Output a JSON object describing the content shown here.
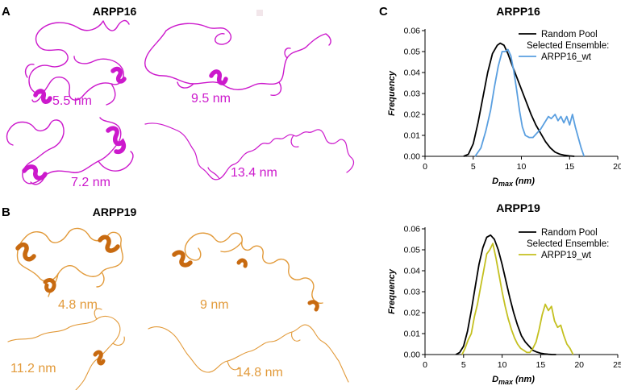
{
  "panels": {
    "a": {
      "letter": "A",
      "title": "ARPP16",
      "color": "#cc19cc",
      "sizes": [
        "5.5 nm",
        "9.5 nm",
        "7.2 nm",
        "13.4 nm"
      ]
    },
    "b": {
      "letter": "B",
      "title": "ARPP19",
      "color": "#e29a3a",
      "helix_color": "#c86a10",
      "sizes": [
        "4.8 nm",
        "9 nm",
        "11.2 nm",
        "14.8 nm"
      ]
    },
    "c": {
      "letter": "C"
    }
  },
  "chart_data": [
    {
      "type": "line",
      "title": "ARPP16",
      "xlabel": "D_max (nm)",
      "xlabel_main": "D",
      "xlabel_sub": "max",
      "xlabel_unit": " (nm)",
      "ylabel": "Frequency",
      "xlim": [
        0,
        20
      ],
      "ylim": [
        0,
        0.06
      ],
      "xticks": [
        0,
        5,
        10,
        15,
        20
      ],
      "yticks": [
        0.0,
        0.01,
        0.02,
        0.03,
        0.04,
        0.05,
        0.06
      ],
      "ytick_labels": [
        "0.00",
        "0.01",
        "0.02",
        "0.03",
        "0.04",
        "0.05",
        "0.06"
      ],
      "legend": {
        "position": "top-right",
        "header": "Selected Ensemble:"
      },
      "series": [
        {
          "name": "Random Pool",
          "color": "#000000",
          "x": [
            4,
            4.5,
            5,
            5.5,
            6,
            6.5,
            7,
            7.5,
            7.8,
            8.2,
            8.6,
            9,
            9.5,
            10,
            10.5,
            11,
            11.5,
            12,
            12.5,
            13,
            13.5,
            14,
            14.5,
            15,
            15.5
          ],
          "y": [
            0,
            0.001,
            0.006,
            0.016,
            0.028,
            0.04,
            0.049,
            0.053,
            0.054,
            0.053,
            0.049,
            0.044,
            0.038,
            0.032,
            0.026,
            0.02,
            0.015,
            0.011,
            0.007,
            0.004,
            0.002,
            0.001,
            0.0005,
            0.0002,
            0
          ]
        },
        {
          "name": "ARPP16_wt",
          "color": "#5a9fe0",
          "x": [
            5.2,
            5.8,
            6.3,
            6.8,
            7.2,
            7.6,
            8.0,
            8.3,
            8.6,
            8.9,
            9.2,
            9.5,
            9.8,
            10.1,
            10.4,
            10.8,
            11.2,
            11.6,
            12.0,
            12.4,
            12.8,
            13.1,
            13.5,
            13.8,
            14.1,
            14.4,
            14.7,
            15.0,
            15.3,
            15.6,
            15.9,
            16.2,
            16.5
          ],
          "y": [
            0,
            0.004,
            0.012,
            0.022,
            0.033,
            0.043,
            0.05,
            0.05,
            0.051,
            0.048,
            0.041,
            0.032,
            0.022,
            0.014,
            0.01,
            0.009,
            0.009,
            0.011,
            0.013,
            0.016,
            0.019,
            0.018,
            0.02,
            0.017,
            0.019,
            0.016,
            0.019,
            0.015,
            0.02,
            0.014,
            0.009,
            0.004,
            0
          ]
        }
      ]
    },
    {
      "type": "line",
      "title": "ARPP19",
      "xlabel": "D_max (nm)",
      "xlabel_main": "D",
      "xlabel_sub": "max",
      "xlabel_unit": " (nm)",
      "ylabel": "Frequency",
      "xlim": [
        0,
        25
      ],
      "ylim": [
        0,
        0.06
      ],
      "xticks": [
        0,
        5,
        10,
        15,
        20,
        25
      ],
      "yticks": [
        0.0,
        0.01,
        0.02,
        0.03,
        0.04,
        0.05,
        0.06
      ],
      "ytick_labels": [
        "0.00",
        "0.01",
        "0.02",
        "0.03",
        "0.04",
        "0.05",
        "0.06"
      ],
      "legend": {
        "position": "top-right",
        "header": "Selected Ensemble:"
      },
      "series": [
        {
          "name": "Random Pool",
          "color": "#000000",
          "x": [
            4,
            4.5,
            5,
            5.5,
            6,
            6.5,
            7,
            7.5,
            8,
            8.5,
            9,
            9.5,
            10,
            10.5,
            11,
            11.5,
            12,
            12.5,
            13,
            13.5,
            14,
            14.5,
            15,
            15.5,
            16,
            16.5,
            17
          ],
          "y": [
            0,
            0.001,
            0.004,
            0.011,
            0.021,
            0.032,
            0.043,
            0.051,
            0.056,
            0.057,
            0.055,
            0.05,
            0.043,
            0.035,
            0.027,
            0.02,
            0.014,
            0.009,
            0.006,
            0.004,
            0.002,
            0.0012,
            0.0006,
            0.0003,
            0.0001,
            0,
            0
          ]
        },
        {
          "name": "ARPP19_wt",
          "color": "#c4c020",
          "x": [
            4.8,
            5.2,
            5.6,
            6.0,
            6.4,
            6.8,
            7.2,
            7.6,
            8.0,
            8.4,
            8.8,
            9.2,
            9.6,
            10.0,
            10.4,
            10.8,
            11.2,
            11.6,
            12.0,
            12.4,
            12.8,
            13.2,
            13.6,
            14.0,
            14.4,
            14.8,
            15.2,
            15.6,
            16.0,
            16.4,
            16.8,
            17.2,
            17.6,
            18.0,
            18.4,
            18.8,
            19.2
          ],
          "y": [
            0,
            0.003,
            0.007,
            0.01,
            0.018,
            0.024,
            0.032,
            0.04,
            0.048,
            0.05,
            0.053,
            0.046,
            0.038,
            0.03,
            0.023,
            0.017,
            0.012,
            0.008,
            0.005,
            0.003,
            0.002,
            0.001,
            0.001,
            0.003,
            0.006,
            0.012,
            0.019,
            0.024,
            0.021,
            0.023,
            0.016,
            0.013,
            0.014,
            0.009,
            0.005,
            0.003,
            0
          ]
        }
      ]
    }
  ]
}
